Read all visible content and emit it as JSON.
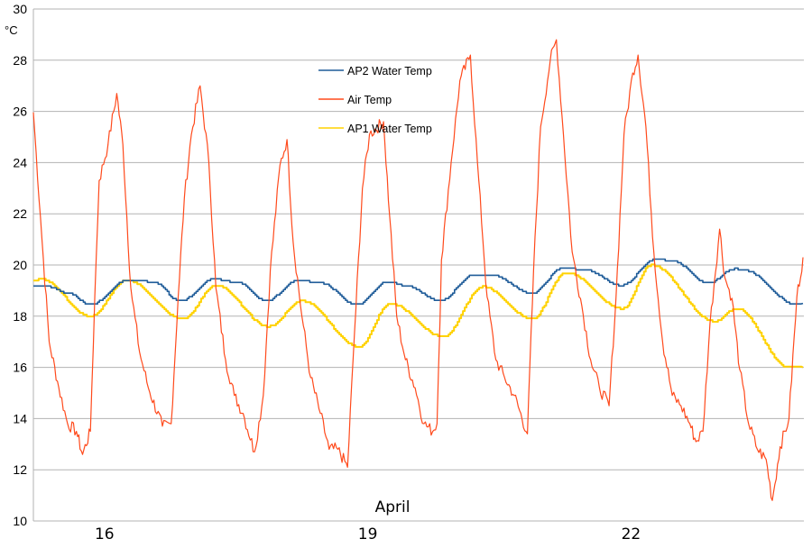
{
  "chart_data": {
    "type": "line",
    "title": "",
    "ylabel": "°C",
    "xlabel": "April",
    "ylim": [
      10,
      30
    ],
    "yticks": [
      10,
      12,
      14,
      16,
      18,
      20,
      22,
      24,
      26,
      28,
      30
    ],
    "xlim": [
      15.19,
      23.97
    ],
    "xticks": [
      16,
      19,
      22
    ],
    "grid": {
      "horizontal": true,
      "vertical": false
    },
    "legend_placement": "top-center inside plot",
    "series": [
      {
        "name": "AP2 Water Temp",
        "color": "#1f5c99",
        "style": "step",
        "points": [
          [
            15.19,
            19.2
          ],
          [
            15.37,
            19.15
          ],
          [
            15.58,
            18.9
          ],
          [
            15.84,
            18.45
          ],
          [
            16.25,
            19.4
          ],
          [
            16.55,
            19.35
          ],
          [
            16.86,
            18.6
          ],
          [
            17.25,
            19.45
          ],
          [
            17.53,
            19.3
          ],
          [
            17.84,
            18.6
          ],
          [
            18.2,
            19.4
          ],
          [
            18.46,
            19.3
          ],
          [
            18.87,
            18.45
          ],
          [
            19.23,
            19.35
          ],
          [
            19.43,
            19.2
          ],
          [
            19.82,
            18.6
          ],
          [
            20.2,
            19.6
          ],
          [
            20.41,
            19.6
          ],
          [
            20.87,
            18.9
          ],
          [
            21.23,
            19.9
          ],
          [
            21.49,
            19.8
          ],
          [
            21.88,
            19.2
          ],
          [
            22.29,
            20.25
          ],
          [
            22.47,
            20.15
          ],
          [
            22.88,
            19.3
          ],
          [
            23.18,
            19.85
          ],
          [
            23.28,
            19.8
          ],
          [
            23.89,
            18.45
          ],
          [
            23.96,
            18.5
          ]
        ]
      },
      {
        "name": "Air Temp",
        "color": "#ff4a1c",
        "style": "line",
        "points": [
          [
            15.19,
            25.96
          ],
          [
            15.27,
            21.9
          ],
          [
            15.37,
            17.0
          ],
          [
            15.48,
            15.2
          ],
          [
            15.58,
            13.8
          ],
          [
            15.68,
            13.5
          ],
          [
            15.75,
            12.6
          ],
          [
            15.84,
            13.5
          ],
          [
            15.89,
            18.8
          ],
          [
            15.94,
            23.3
          ],
          [
            16.04,
            24.7
          ],
          [
            16.14,
            26.7
          ],
          [
            16.21,
            24.7
          ],
          [
            16.3,
            19.1
          ],
          [
            16.4,
            16.6
          ],
          [
            16.5,
            15.2
          ],
          [
            16.66,
            13.7
          ],
          [
            16.76,
            13.8
          ],
          [
            16.84,
            18.75
          ],
          [
            16.91,
            22.6
          ],
          [
            16.99,
            25.1
          ],
          [
            17.09,
            27.0
          ],
          [
            17.19,
            24.0
          ],
          [
            17.27,
            19.1
          ],
          [
            17.38,
            16.3
          ],
          [
            17.48,
            14.9
          ],
          [
            17.58,
            14.2
          ],
          [
            17.71,
            12.7
          ],
          [
            17.81,
            14.9
          ],
          [
            17.89,
            19.8
          ],
          [
            18.0,
            23.9
          ],
          [
            18.08,
            24.9
          ],
          [
            18.15,
            20.9
          ],
          [
            18.25,
            18.0
          ],
          [
            18.35,
            15.6
          ],
          [
            18.46,
            14.2
          ],
          [
            18.56,
            12.8
          ],
          [
            18.66,
            12.8
          ],
          [
            18.77,
            12.1
          ],
          [
            18.85,
            17.4
          ],
          [
            18.94,
            23.0
          ],
          [
            19.02,
            25.1
          ],
          [
            19.18,
            25.6
          ],
          [
            19.25,
            21.9
          ],
          [
            19.33,
            18.0
          ],
          [
            19.43,
            16.3
          ],
          [
            19.54,
            15.2
          ],
          [
            19.64,
            13.8
          ],
          [
            19.74,
            13.5
          ],
          [
            19.79,
            13.8
          ],
          [
            19.84,
            20.2
          ],
          [
            19.95,
            24.0
          ],
          [
            20.05,
            27.2
          ],
          [
            20.17,
            28.2
          ],
          [
            20.25,
            24.0
          ],
          [
            20.36,
            18.75
          ],
          [
            20.46,
            16.3
          ],
          [
            20.56,
            15.6
          ],
          [
            20.67,
            14.9
          ],
          [
            20.82,
            13.4
          ],
          [
            20.89,
            19.8
          ],
          [
            20.97,
            25.4
          ],
          [
            21.08,
            28.0
          ],
          [
            21.15,
            28.8
          ],
          [
            21.23,
            25.1
          ],
          [
            21.33,
            20.5
          ],
          [
            21.44,
            18.4
          ],
          [
            21.54,
            16.3
          ],
          [
            21.64,
            15.2
          ],
          [
            21.75,
            14.5
          ],
          [
            21.83,
            18.75
          ],
          [
            21.92,
            25.1
          ],
          [
            22.02,
            27.5
          ],
          [
            22.08,
            28.2
          ],
          [
            22.17,
            25.4
          ],
          [
            22.26,
            20.5
          ],
          [
            22.36,
            17.0
          ],
          [
            22.47,
            14.9
          ],
          [
            22.57,
            14.5
          ],
          [
            22.67,
            13.8
          ],
          [
            22.74,
            13.1
          ],
          [
            22.82,
            13.5
          ],
          [
            22.9,
            17.7
          ],
          [
            23.01,
            21.4
          ],
          [
            23.07,
            19.5
          ],
          [
            23.15,
            18.7
          ],
          [
            23.24,
            15.9
          ],
          [
            23.34,
            13.8
          ],
          [
            23.44,
            12.8
          ],
          [
            23.54,
            12.4
          ],
          [
            23.61,
            10.8
          ],
          [
            23.7,
            12.9
          ],
          [
            23.8,
            14.0
          ],
          [
            23.89,
            18.75
          ],
          [
            23.96,
            20.3
          ]
        ]
      },
      {
        "name": "AP1 Water Temp",
        "color": "#ffd200",
        "style": "step",
        "points": [
          [
            15.19,
            19.4
          ],
          [
            15.27,
            19.45
          ],
          [
            15.84,
            18.0
          ],
          [
            16.25,
            19.4
          ],
          [
            16.89,
            17.9
          ],
          [
            17.27,
            19.2
          ],
          [
            17.87,
            17.6
          ],
          [
            18.25,
            18.6
          ],
          [
            18.9,
            16.8
          ],
          [
            19.25,
            18.5
          ],
          [
            19.86,
            17.2
          ],
          [
            20.31,
            19.15
          ],
          [
            20.87,
            17.9
          ],
          [
            21.26,
            19.7
          ],
          [
            21.9,
            18.3
          ],
          [
            22.23,
            20.0
          ],
          [
            22.95,
            17.8
          ],
          [
            23.2,
            18.3
          ],
          [
            23.8,
            16.0
          ],
          [
            23.96,
            16.0
          ]
        ]
      }
    ]
  }
}
